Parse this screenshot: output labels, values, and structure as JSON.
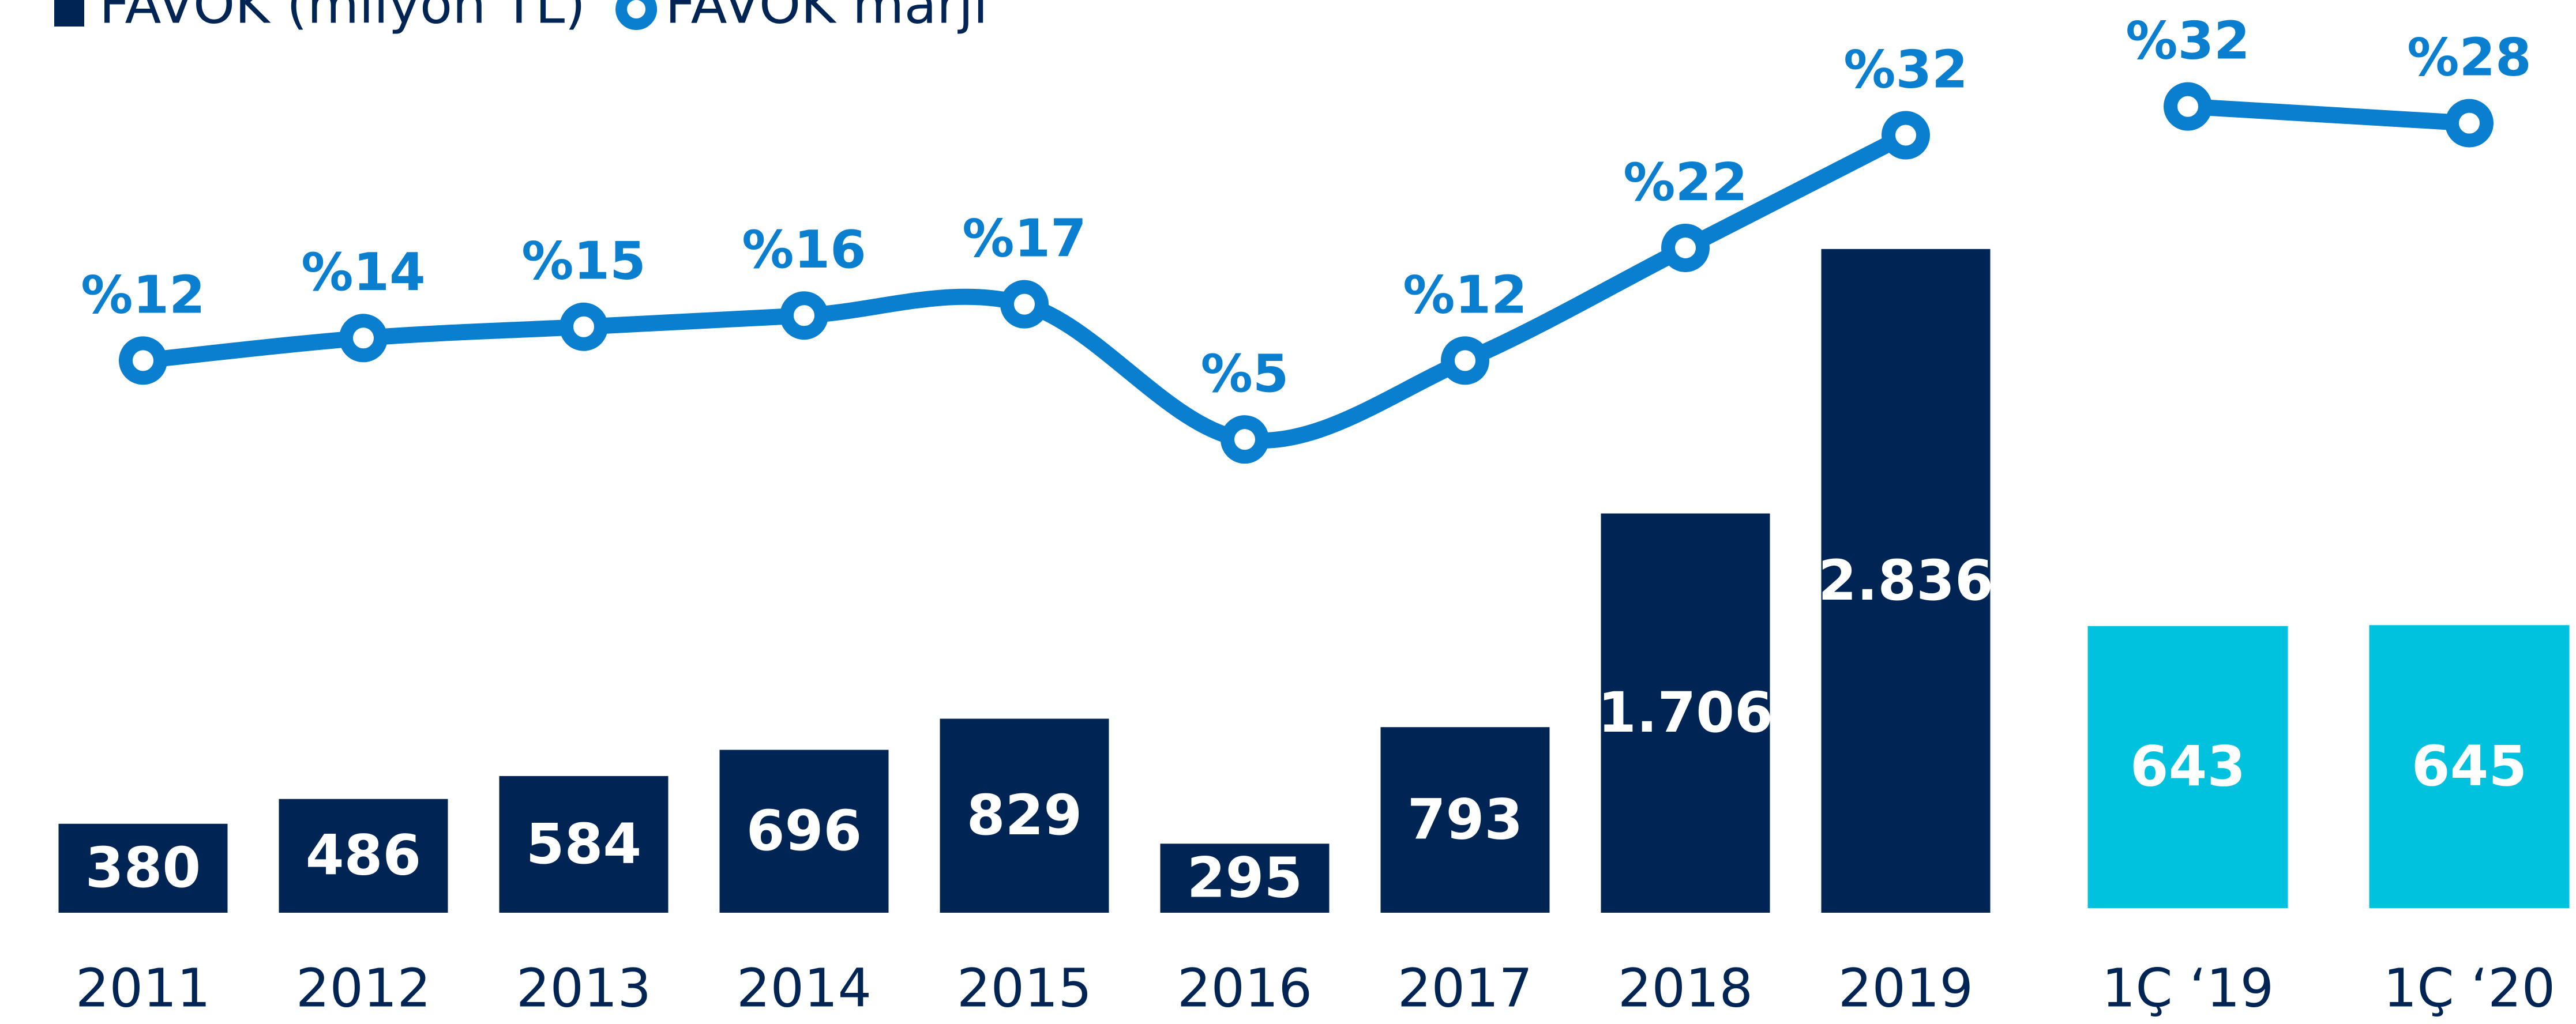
{
  "chart_data": [
    {
      "type": "bar",
      "legend": "top-left",
      "categories": [
        "2011",
        "2012",
        "2013",
        "2014",
        "2015",
        "2016",
        "2017",
        "2018",
        "2019"
      ],
      "ylim": [
        0,
        3900
      ],
      "y2lim": [
        -37,
        44
      ],
      "series": [
        {
          "name": "FAVÖK (milyon TL)",
          "type": "bar",
          "color": "#002554",
          "values": [
            380,
            486,
            584,
            696,
            829,
            295,
            793,
            1706,
            2836
          ],
          "value_labels": [
            "380",
            "486",
            "584",
            "696",
            "829",
            "295",
            "793",
            "1.706",
            "2.836"
          ]
        },
        {
          "name": "FAVÖK marjı",
          "type": "line",
          "axis": "y2",
          "color": "#0a7fd0",
          "values": [
            12,
            14,
            15,
            16,
            17,
            5,
            12,
            22,
            32
          ],
          "value_labels": [
            "%12",
            "%14",
            "%15",
            "%16",
            "%17",
            "%5",
            "%12",
            "%22",
            "%32"
          ]
        }
      ]
    },
    {
      "type": "bar",
      "categories": [
        "1Ç ‘19",
        "1Ç ‘20"
      ],
      "ylim": [
        0,
        2070
      ],
      "y2lim": [
        -160,
        57.5
      ],
      "series": [
        {
          "type": "bar",
          "color": "#00c1de",
          "values": [
            643,
            645
          ]
        },
        {
          "type": "line",
          "axis": "y2",
          "color": "#0a7fd0",
          "values": [
            32,
            28
          ],
          "value_labels": [
            "%32",
            "%28"
          ]
        }
      ]
    }
  ]
}
